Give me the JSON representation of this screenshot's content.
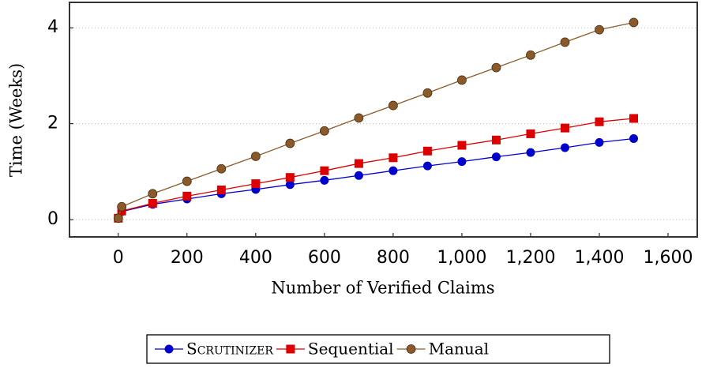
{
  "chart_data": {
    "type": "line",
    "xlabel": "Number of Verified Claims",
    "ylabel": "Time (Weeks)",
    "x": [
      0,
      10,
      100,
      200,
      300,
      400,
      500,
      600,
      700,
      800,
      900,
      1000,
      1100,
      1200,
      1300,
      1400,
      1500
    ],
    "series": [
      {
        "name": "Scrutinizer",
        "color": "#0000cc",
        "marker": "circle",
        "values": [
          0.03,
          0.17,
          0.32,
          0.43,
          0.54,
          0.63,
          0.73,
          0.82,
          0.92,
          1.02,
          1.12,
          1.21,
          1.31,
          1.4,
          1.5,
          1.61,
          1.69
        ]
      },
      {
        "name": "Sequential",
        "color": "#dd0000",
        "marker": "square",
        "values": [
          0.03,
          0.18,
          0.34,
          0.49,
          0.62,
          0.75,
          0.88,
          1.02,
          1.17,
          1.29,
          1.43,
          1.55,
          1.66,
          1.79,
          1.91,
          2.04,
          2.11
        ]
      },
      {
        "name": "Manual",
        "color": "#8b5a2b",
        "marker": "circle",
        "values": [
          0.03,
          0.27,
          0.54,
          0.8,
          1.06,
          1.32,
          1.59,
          1.85,
          2.12,
          2.38,
          2.64,
          2.91,
          3.17,
          3.43,
          3.7,
          3.96,
          4.11
        ]
      }
    ],
    "xlim": [
      -142,
      1685
    ],
    "xticks": [
      0,
      200,
      400,
      600,
      800,
      {
        "value": 1000,
        "label": "1,000"
      },
      {
        "value": 1200,
        "label": "1,200"
      },
      {
        "value": 1400,
        "label": "1,400"
      },
      {
        "value": 1600,
        "label": "1,600"
      }
    ],
    "ylim": [
      -0.36,
      4.53
    ],
    "yticks": [
      0,
      2,
      4
    ],
    "grid": true,
    "legend": "bottom"
  }
}
